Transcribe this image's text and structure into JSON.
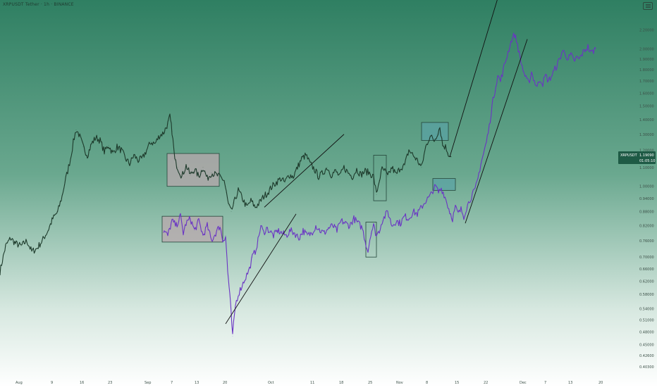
{
  "header": {
    "symbol_line": "XRPUSDT Tether · 1h · BINANCE",
    "menu_icon": "hamburger-icon"
  },
  "colors": {
    "bg_top": "#2f7f62",
    "bg_bottom": "#ffffff",
    "series_main": "#1d3a2b",
    "series_overlay": "#6a34c4",
    "box_grey": "#b9a8ad",
    "box_teal": "#5aa2a5",
    "price_tag": "#1e5a45",
    "trendline": "#111111"
  },
  "price_tag": {
    "symbol": "XRPUSDT",
    "price": "1.19090",
    "countdown": "01:05:10"
  },
  "chart_data": {
    "type": "line",
    "log_scale": true,
    "grid": false,
    "x_tick_labels": [
      "Aug",
      "9",
      "16",
      "23",
      "Sep",
      "7",
      "13",
      "20",
      "Oct",
      "11",
      "18",
      "25",
      "Nov",
      "8",
      "15",
      "22",
      "Dec",
      "7",
      "13",
      "20"
    ],
    "y_tick_labels": [
      "2.20000",
      "2.00000",
      "1.90000",
      "1.80000",
      "1.70000",
      "1.60000",
      "1.50000",
      "1.40000",
      "1.30000",
      "1.20000",
      "1.10000",
      "1.00000",
      "0.94000",
      "0.88000",
      "0.82000",
      "0.76000",
      "0.70000",
      "0.66000",
      "0.62000",
      "0.58000",
      "0.54000",
      "0.51000",
      "0.48000",
      "0.45000",
      "0.42600",
      "0.40300"
    ],
    "y_ticks": [
      2.2,
      2.0,
      1.9,
      1.8,
      1.7,
      1.6,
      1.5,
      1.4,
      1.3,
      1.2,
      1.1,
      1.0,
      0.94,
      0.88,
      0.82,
      0.76,
      0.7,
      0.66,
      0.62,
      0.58,
      0.54,
      0.51,
      0.48,
      0.45,
      0.426,
      0.403
    ],
    "ylim": [
      0.39,
      2.3
    ],
    "series": [
      {
        "key": "main",
        "x": [
          0,
          8,
          15,
          22,
          30,
          38,
          45,
          52,
          60,
          68,
          75,
          82,
          88,
          92,
          96,
          100,
          104,
          108,
          112,
          118,
          124,
          130,
          136,
          142,
          148,
          154,
          160,
          166,
          172,
          178,
          184,
          190,
          196,
          202,
          208,
          214,
          220,
          226,
          232,
          238,
          241,
          244,
          248,
          252,
          258,
          264,
          270,
          276,
          282,
          288,
          294,
          300,
          306,
          312,
          318,
          321,
          324,
          328,
          332,
          338,
          344,
          350,
          356,
          362,
          368,
          374,
          380,
          386,
          392,
          398,
          404,
          410,
          416,
          422,
          428,
          434,
          440,
          446,
          452,
          458,
          464,
          470,
          476,
          482,
          488,
          494,
          500,
          506,
          512,
          518,
          524,
          530,
          534,
          538,
          542,
          546,
          550,
          556,
          562,
          568,
          574,
          580,
          586,
          592,
          598,
          604,
          610,
          616,
          620,
          624,
          628,
          632,
          636,
          640
        ],
        "y": [
          0.65,
          0.74,
          0.77,
          0.75,
          0.74,
          0.76,
          0.72,
          0.73,
          0.76,
          0.8,
          0.85,
          0.88,
          0.95,
          1.02,
          1.08,
          1.15,
          1.25,
          1.33,
          1.3,
          1.22,
          1.17,
          1.24,
          1.28,
          1.26,
          1.19,
          1.23,
          1.18,
          1.22,
          1.2,
          1.15,
          1.12,
          1.17,
          1.14,
          1.15,
          1.2,
          1.25,
          1.24,
          1.29,
          1.31,
          1.37,
          1.42,
          1.32,
          1.14,
          1.1,
          1.05,
          1.11,
          1.06,
          1.09,
          1.05,
          1.1,
          1.04,
          1.07,
          1.06,
          1.05,
          1.03,
          0.97,
          0.91,
          0.88,
          0.92,
          0.98,
          0.94,
          0.9,
          0.93,
          0.9,
          0.92,
          0.95,
          0.97,
          1.0,
          1.02,
          1.04,
          1.02,
          1.06,
          1.05,
          1.1,
          1.15,
          1.17,
          1.12,
          1.09,
          1.05,
          1.07,
          1.1,
          1.06,
          1.08,
          1.05,
          1.1,
          1.07,
          1.05,
          1.09,
          1.06,
          1.08,
          1.07,
          1.05,
          0.96,
          1.03,
          1.09,
          1.08,
          1.05,
          1.1,
          1.06,
          1.1,
          1.11,
          1.2,
          1.17,
          1.14,
          1.1,
          1.22,
          1.29,
          1.26,
          1.3,
          1.35,
          1.23,
          1.22,
          1.18,
          1.16
        ]
      },
      {
        "key": "overlay",
        "x": [
          232,
          238,
          244,
          250,
          256,
          260,
          264,
          270,
          276,
          282,
          288,
          294,
          300,
          306,
          312,
          316,
          320,
          323,
          326,
          328,
          330,
          334,
          338,
          342,
          346,
          350,
          354,
          358,
          362,
          366,
          370,
          374,
          378,
          382,
          388,
          394,
          400,
          406,
          412,
          418,
          424,
          430,
          436,
          442,
          448,
          454,
          460,
          466,
          472,
          478,
          484,
          490,
          496,
          502,
          508,
          514,
          518,
          522,
          526,
          530,
          534,
          538,
          542,
          546,
          550,
          556,
          562,
          568,
          574,
          580,
          586,
          592,
          598,
          604,
          610,
          614,
          618,
          622,
          626,
          630,
          634,
          638,
          642,
          646,
          650,
          654,
          658,
          662,
          666,
          670,
          674,
          678,
          682,
          686,
          690,
          694,
          698,
          702,
          706,
          710,
          714,
          718,
          722,
          726,
          730,
          734,
          738,
          742,
          746,
          750,
          754,
          758,
          762,
          766,
          770,
          774,
          778,
          782,
          786,
          790,
          794,
          798,
          802,
          806,
          810,
          814,
          818,
          822,
          826,
          830,
          834,
          838,
          842,
          845
        ],
        "y": [
          0.8,
          0.78,
          0.84,
          0.82,
          0.86,
          0.79,
          0.83,
          0.85,
          0.8,
          0.84,
          0.78,
          0.82,
          0.76,
          0.79,
          0.82,
          0.76,
          0.78,
          0.65,
          0.58,
          0.52,
          0.47,
          0.55,
          0.58,
          0.6,
          0.62,
          0.64,
          0.66,
          0.7,
          0.72,
          0.76,
          0.82,
          0.79,
          0.81,
          0.8,
          0.78,
          0.8,
          0.79,
          0.78,
          0.8,
          0.79,
          0.77,
          0.8,
          0.78,
          0.79,
          0.82,
          0.8,
          0.79,
          0.81,
          0.82,
          0.8,
          0.84,
          0.83,
          0.82,
          0.85,
          0.83,
          0.81,
          0.76,
          0.72,
          0.79,
          0.82,
          0.78,
          0.8,
          0.84,
          0.86,
          0.88,
          0.82,
          0.84,
          0.83,
          0.86,
          0.85,
          0.88,
          0.87,
          0.9,
          0.93,
          0.95,
          0.98,
          1.0,
          0.97,
          0.99,
          0.96,
          0.92,
          0.88,
          0.85,
          0.9,
          0.87,
          0.89,
          0.86,
          0.9,
          0.93,
          0.96,
          0.98,
          1.04,
          1.12,
          1.18,
          1.25,
          1.35,
          1.5,
          1.62,
          1.75,
          1.7,
          1.8,
          1.9,
          2.0,
          2.1,
          2.15,
          2.05,
          1.9,
          1.8,
          1.72,
          1.68,
          1.78,
          1.7,
          1.65,
          1.72,
          1.68,
          1.75,
          1.7,
          1.74,
          1.79,
          1.84,
          1.9,
          1.98,
          1.95,
          1.9,
          1.94,
          1.88,
          1.91,
          1.9,
          1.95,
          1.99,
          2.02,
          1.96,
          1.98,
          2.0
        ]
      }
    ],
    "annotations": {
      "boxes": [
        {
          "kind": "grey",
          "x0": 237,
          "x1": 311,
          "y_low": 1.0,
          "y_high": 1.18
        },
        {
          "kind": "grey",
          "x0": 230,
          "x1": 316,
          "y_low": 0.755,
          "y_high": 0.86
        },
        {
          "kind": "teal",
          "x0": 598,
          "x1": 636,
          "y_low": 1.26,
          "y_high": 1.38
        },
        {
          "kind": "teal",
          "x0": 614,
          "x1": 646,
          "y_low": 0.98,
          "y_high": 1.04
        },
        {
          "kind": "outline",
          "x0": 530,
          "x1": 548,
          "y_low": 0.93,
          "y_high": 1.17
        },
        {
          "kind": "outline",
          "x0": 519,
          "x1": 534,
          "y_low": 0.7,
          "y_high": 0.835
        }
      ],
      "trendlines": [
        {
          "x0": 375,
          "y0": 0.9,
          "x1": 488,
          "y1": 1.3
        },
        {
          "x0": 320,
          "y0": 0.5,
          "x1": 420,
          "y1": 0.87
        },
        {
          "x0": 638,
          "y0": 1.16,
          "x1": 716,
          "y1": 2.9
        },
        {
          "x0": 660,
          "y0": 0.83,
          "x1": 748,
          "y1": 2.1
        }
      ]
    }
  }
}
